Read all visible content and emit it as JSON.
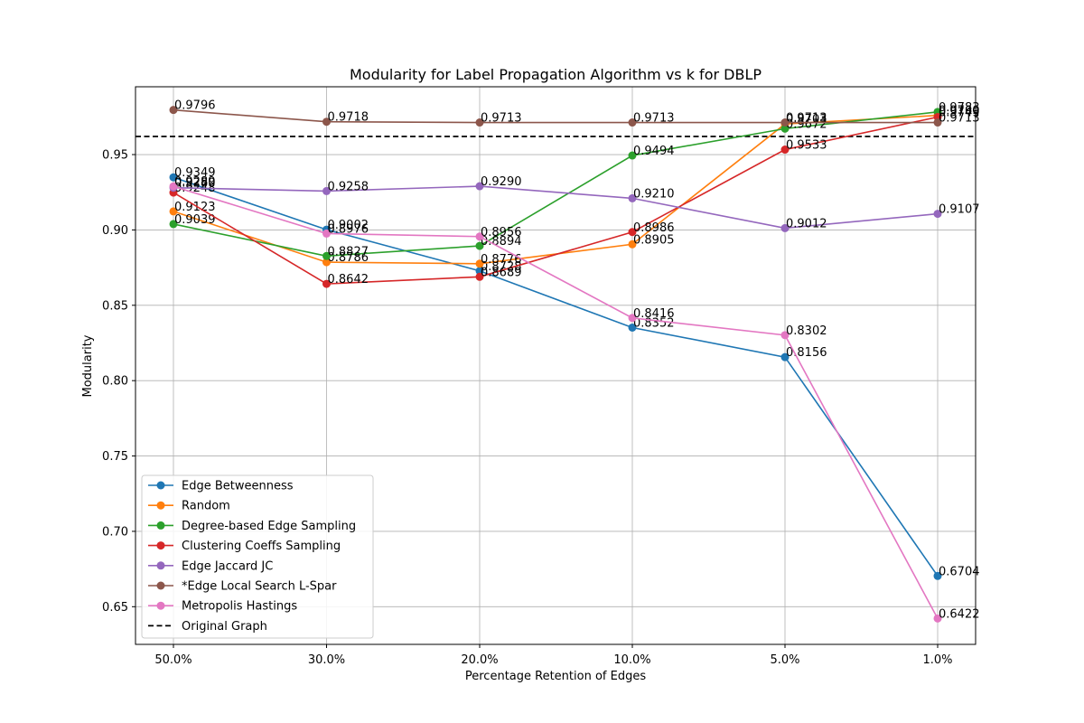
{
  "chart_data": {
    "type": "line",
    "title": "Modularity for Label Propagation Algorithm vs k for DBLP",
    "xlabel": "Percentage Retention of Edges",
    "ylabel": "Modularity",
    "categories": [
      "50.0%",
      "30.0%",
      "20.0%",
      "10.0%",
      "5.0%",
      "1.0%"
    ],
    "ylim": [
      0.625,
      0.995
    ],
    "yticks": [
      "0.65",
      "0.70",
      "0.75",
      "0.80",
      "0.85",
      "0.90",
      "0.95"
    ],
    "grid": true,
    "legend_position": "lower-left",
    "reference_line": {
      "name": "Original Graph",
      "value": 0.962,
      "color": "#000000"
    },
    "series": [
      {
        "name": "Edge Betweenness",
        "color": "#1f77b4",
        "values": [
          0.9349,
          0.9002,
          0.8728,
          0.8352,
          0.8156,
          0.6704
        ],
        "labels": [
          "0.9349",
          "0.9002",
          "0.8728",
          "0.8352",
          "0.8156",
          "0.6704"
        ]
      },
      {
        "name": "Random",
        "color": "#ff7f0e",
        "values": [
          0.9123,
          0.8786,
          0.8776,
          0.8905,
          0.9703,
          0.976
        ],
        "labels": [
          "0.9123",
          "0.8786",
          "0.8776",
          "0.8905",
          "0.9703",
          "0.9760"
        ]
      },
      {
        "name": "Degree-based Edge Sampling",
        "color": "#2ca02c",
        "values": [
          0.9039,
          0.8827,
          0.8894,
          0.9494,
          0.9672,
          0.9783
        ],
        "labels": [
          "0.9039",
          "0.8827",
          "0.8894",
          "0.9494",
          "0.9672",
          "0.9783"
        ]
      },
      {
        "name": "Clustering Coeffs Sampling",
        "color": "#d62728",
        "values": [
          0.9248,
          0.8642,
          0.8689,
          0.8986,
          0.9533,
          0.9749
        ],
        "labels": [
          "0.9248",
          "0.8642",
          "0.8689",
          "0.8986",
          "0.9533",
          "0.9749"
        ]
      },
      {
        "name": "Edge Jaccard JC",
        "color": "#9467bd",
        "values": [
          0.928,
          0.9258,
          0.929,
          0.921,
          0.9012,
          0.9107
        ],
        "labels": [
          "0.9280",
          "0.9258",
          "0.9290",
          "0.9210",
          "0.9012",
          "0.9107"
        ]
      },
      {
        "name": "*Edge Local Search L-Spar",
        "color": "#8c564b",
        "values": [
          0.9796,
          0.9718,
          0.9713,
          0.9713,
          0.9713,
          0.9713
        ],
        "labels": [
          "0.9796",
          "0.9718",
          "0.9713",
          "0.9713",
          "0.9713",
          "0.9713"
        ]
      },
      {
        "name": "Metropolis Hastings",
        "color": "#e377c2",
        "values": [
          0.9289,
          0.8976,
          0.8956,
          0.8416,
          0.8302,
          0.6422
        ],
        "labels": [
          "0.9289",
          "0.8976",
          "0.8956",
          "0.8416",
          "0.8302",
          "0.6422"
        ]
      }
    ]
  }
}
